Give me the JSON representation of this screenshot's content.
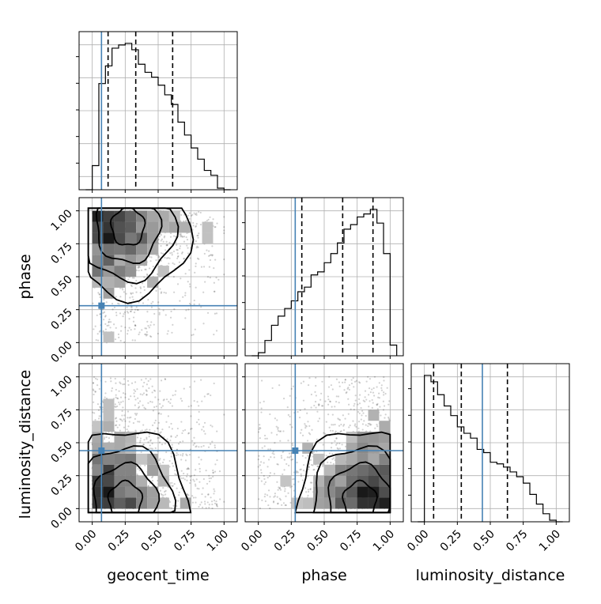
{
  "figure": {
    "type": "corner_plot",
    "parameters": [
      "geocent_time",
      "phase",
      "luminosity_distance"
    ],
    "truth_color": "#4682b4"
  },
  "chart_data": [
    {
      "type": "histogram",
      "panel": "geocent_time-marginal",
      "xlabel": "",
      "bin_edges": [
        -0.05,
        0.0,
        0.05,
        0.1,
        0.15,
        0.2,
        0.25,
        0.3,
        0.35,
        0.4,
        0.45,
        0.5,
        0.55,
        0.6,
        0.65,
        0.7,
        0.75,
        0.8,
        0.85,
        0.9,
        0.95,
        1.0,
        1.05
      ],
      "counts": [
        0.0,
        0.15,
        0.66,
        0.77,
        0.88,
        0.9,
        0.91,
        0.87,
        0.78,
        0.73,
        0.7,
        0.65,
        0.59,
        0.53,
        0.42,
        0.34,
        0.26,
        0.19,
        0.12,
        0.09,
        0.01,
        0.0
      ],
      "quantiles": [
        0.12,
        0.33,
        0.61
      ],
      "truth": 0.07,
      "xlim": [
        -0.1,
        1.1
      ],
      "grid": true
    },
    {
      "type": "histogram",
      "panel": "phase-marginal",
      "xlabel": "",
      "bin_edges": [
        -0.05,
        0.0,
        0.05,
        0.1,
        0.15,
        0.2,
        0.25,
        0.3,
        0.35,
        0.4,
        0.45,
        0.5,
        0.55,
        0.6,
        0.65,
        0.7,
        0.75,
        0.8,
        0.85,
        0.9,
        0.95,
        1.0,
        1.05
      ],
      "counts": [
        0.0,
        0.02,
        0.1,
        0.2,
        0.26,
        0.31,
        0.36,
        0.42,
        0.45,
        0.53,
        0.55,
        0.61,
        0.67,
        0.74,
        0.83,
        0.86,
        0.91,
        0.93,
        0.96,
        0.87,
        0.67,
        0.07
      ],
      "quantiles": [
        0.33,
        0.64,
        0.87
      ],
      "truth": 0.28,
      "xlim": [
        -0.1,
        1.1
      ],
      "grid": true
    },
    {
      "type": "histogram",
      "panel": "luminosity_distance-marginal",
      "xlabel": "luminosity_distance",
      "bin_edges": [
        -0.05,
        0.0,
        0.05,
        0.1,
        0.15,
        0.2,
        0.25,
        0.3,
        0.35,
        0.4,
        0.45,
        0.5,
        0.55,
        0.6,
        0.65,
        0.7,
        0.75,
        0.8,
        0.85,
        0.9,
        0.95,
        1.0,
        1.05
      ],
      "counts": [
        0.0,
        0.91,
        0.87,
        0.79,
        0.72,
        0.66,
        0.59,
        0.55,
        0.52,
        0.45,
        0.43,
        0.37,
        0.36,
        0.34,
        0.31,
        0.28,
        0.24,
        0.17,
        0.11,
        0.05,
        0.01,
        0.0
      ],
      "quantiles": [
        0.07,
        0.28,
        0.63
      ],
      "truth": 0.44,
      "xlim": [
        -0.1,
        1.1
      ],
      "ticks": [
        "0.00",
        "0.25",
        "0.50",
        "0.75",
        "1.00"
      ],
      "grid": true
    },
    {
      "type": "heatmap",
      "panel": "geocent_time-vs-phase",
      "xlabel": "",
      "ylabel": "phase",
      "truth": [
        0.07,
        0.28
      ],
      "density_peak": [
        0.27,
        0.88
      ],
      "xlim": [
        -0.1,
        1.1
      ],
      "ylim": [
        -0.1,
        1.1
      ],
      "yticks": [
        "0.00",
        "0.25",
        "0.50",
        "0.75",
        "1.00"
      ],
      "contour_levels": 4,
      "grid": true
    },
    {
      "type": "heatmap",
      "panel": "geocent_time-vs-luminosity_distance",
      "xlabel": "geocent_time",
      "ylabel": "luminosity_distance",
      "truth": [
        0.07,
        0.44
      ],
      "density_peak": [
        0.25,
        0.06
      ],
      "xlim": [
        -0.1,
        1.1
      ],
      "ylim": [
        -0.1,
        1.1
      ],
      "xticks": [
        "0.00",
        "0.25",
        "0.50",
        "0.75",
        "1.00"
      ],
      "yticks": [
        "0.00",
        "0.25",
        "0.50",
        "0.75",
        "1.00"
      ],
      "contour_levels": 4,
      "grid": true
    },
    {
      "type": "heatmap",
      "panel": "phase-vs-luminosity_distance",
      "xlabel": "phase",
      "ylabel": "",
      "truth": [
        0.28,
        0.44
      ],
      "density_peak": [
        0.77,
        0.06
      ],
      "xlim": [
        -0.1,
        1.1
      ],
      "ylim": [
        -0.1,
        1.1
      ],
      "xticks": [
        "0.00",
        "0.25",
        "0.50",
        "0.75",
        "1.00"
      ],
      "contour_levels": 4,
      "grid": true
    }
  ]
}
